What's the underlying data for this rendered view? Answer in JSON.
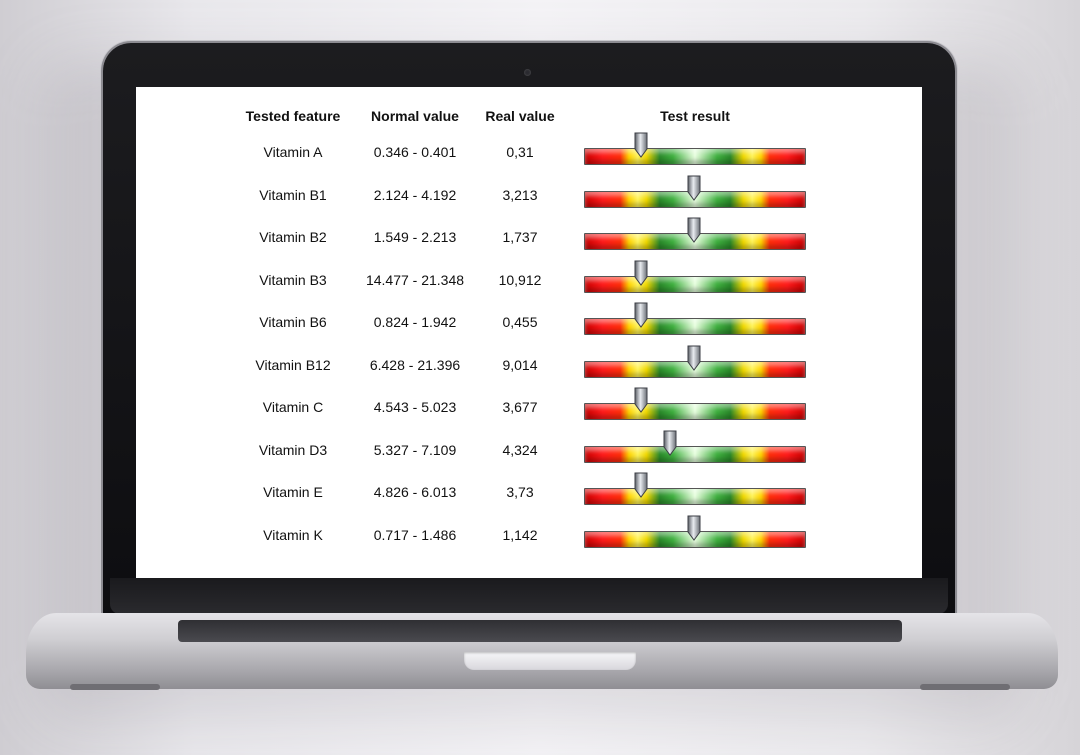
{
  "table": {
    "headers": [
      "Tested feature",
      "Normal value",
      "Real value",
      "Test result"
    ],
    "rows": [
      {
        "feature": "Vitamin A",
        "normal": "0.346 - 0.401",
        "real": "0,31",
        "indicator": 0.26
      },
      {
        "feature": "Vitamin B1",
        "normal": "2.124 - 4.192",
        "real": "3,213",
        "indicator": 0.5
      },
      {
        "feature": "Vitamin B2",
        "normal": "1.549 - 2.213",
        "real": "1,737",
        "indicator": 0.5
      },
      {
        "feature": "Vitamin B3",
        "normal": "14.477 - 21.348",
        "real": "10,912",
        "indicator": 0.26
      },
      {
        "feature": "Vitamin B6",
        "normal": "0.824 - 1.942",
        "real": "0,455",
        "indicator": 0.26
      },
      {
        "feature": "Vitamin B12",
        "normal": "6.428 - 21.396",
        "real": "9,014",
        "indicator": 0.5
      },
      {
        "feature": "Vitamin C",
        "normal": "4.543 - 5.023",
        "real": "3,677",
        "indicator": 0.26
      },
      {
        "feature": "Vitamin D3",
        "normal": "5.327 - 7.109",
        "real": "4,324",
        "indicator": 0.39
      },
      {
        "feature": "Vitamin E",
        "normal": "4.826 - 6.013",
        "real": "3,73",
        "indicator": 0.26
      },
      {
        "feature": "Vitamin K",
        "normal": "0.717 - 1.486",
        "real": "1,142",
        "indicator": 0.5
      }
    ]
  },
  "gauge": {
    "scale_colors": [
      "#cc0000",
      "#ffd400",
      "#2a8a2a",
      "#e8ffe0",
      "#2a8a2a",
      "#ffd400",
      "#cc0000"
    ],
    "marker_icon": "arrow-pointer-icon"
  }
}
